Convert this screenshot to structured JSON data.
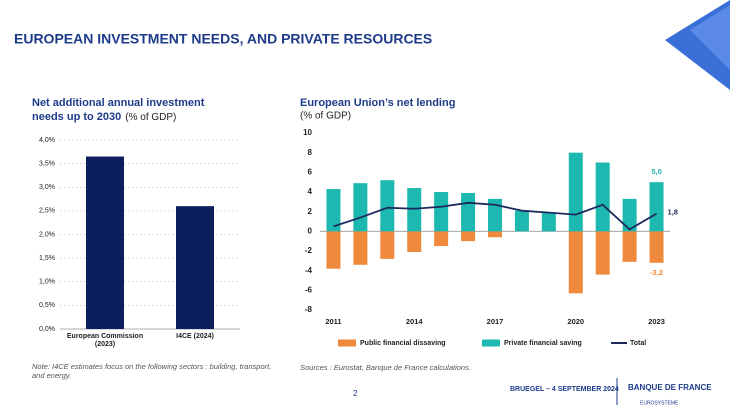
{
  "title": "EUROPEAN INVESTMENT NEEDS, AND PRIVATE RESOURCES",
  "chart_data": [
    {
      "type": "bar",
      "title": [
        "Net additional annual investment",
        "needs up to 2030"
      ],
      "subtitle": "(% of GDP)",
      "categories": [
        "European Commission (2023)",
        "I4CE (2024)"
      ],
      "values": [
        3.65,
        2.6
      ],
      "color": "#0c1f5c",
      "ylim": [
        0,
        4
      ],
      "yticks": [
        {
          "value": 0,
          "label": "0,0%"
        },
        {
          "value": 0.5,
          "label": "0,5%"
        },
        {
          "value": 1,
          "label": "1,0%"
        },
        {
          "value": 1.5,
          "label": "1,5%"
        },
        {
          "value": 2,
          "label": "2,0%"
        },
        {
          "value": 2.5,
          "label": "2,5%"
        },
        {
          "value": 3,
          "label": "3,0%"
        },
        {
          "value": 3.5,
          "label": "3,5%"
        },
        {
          "value": 4,
          "label": "4,0%"
        }
      ],
      "grid": true
    },
    {
      "type": "stacked_bar_line",
      "title": "European Union’s net lending",
      "subtitle": "(% of GDP)",
      "categories": [
        "2011",
        null,
        null,
        "2014",
        null,
        null,
        "2017",
        null,
        null,
        "2020",
        null,
        null,
        "2023"
      ],
      "series": [
        {
          "name": "Public financial dissaving",
          "type": "bar",
          "color": "#ef8a3c",
          "values": [
            -3.8,
            -3.4,
            -2.8,
            -2.1,
            -1.5,
            -1.0,
            -0.6,
            0,
            0,
            -6.3,
            -4.4,
            -3.1,
            -3.2
          ],
          "value_labels": [
            null,
            null,
            null,
            null,
            null,
            null,
            null,
            null,
            null,
            null,
            null,
            null,
            "-3,2"
          ]
        },
        {
          "name": "Private financial saving",
          "type": "bar",
          "color": "#1db8b0",
          "values": [
            4.3,
            4.9,
            5.2,
            4.4,
            4.0,
            3.9,
            3.3,
            2.1,
            1.9,
            8.0,
            7.0,
            3.3,
            5.0
          ],
          "value_labels": [
            null,
            null,
            null,
            null,
            null,
            null,
            null,
            null,
            null,
            null,
            null,
            null,
            "5,0"
          ]
        },
        {
          "name": "Total",
          "type": "line",
          "color": "#1c2a5e",
          "values": [
            0.5,
            1.4,
            2.4,
            2.3,
            2.5,
            2.9,
            2.7,
            2.1,
            1.9,
            1.7,
            2.7,
            0.2,
            1.8
          ],
          "value_labels": [
            null,
            null,
            null,
            null,
            null,
            null,
            null,
            null,
            null,
            null,
            null,
            null,
            "1,8"
          ]
        }
      ],
      "ylim": [
        -8,
        10
      ],
      "yticks": [
        -8,
        -6,
        -4,
        -2,
        0,
        2,
        4,
        6,
        8,
        10
      ],
      "grid": false
    }
  ],
  "note": "Note: I4CE estimates focus on the following sectors : building, transport, and energy.",
  "sources": "Sources : Eurostat, Banque de France calculations.",
  "footer": "BRUEGEL – 4 SEPTEMBER 2024",
  "page_number": "2",
  "logo": {
    "name": "BANQUE DE FRANCE",
    "sub": "EUROSYSTÈME"
  }
}
